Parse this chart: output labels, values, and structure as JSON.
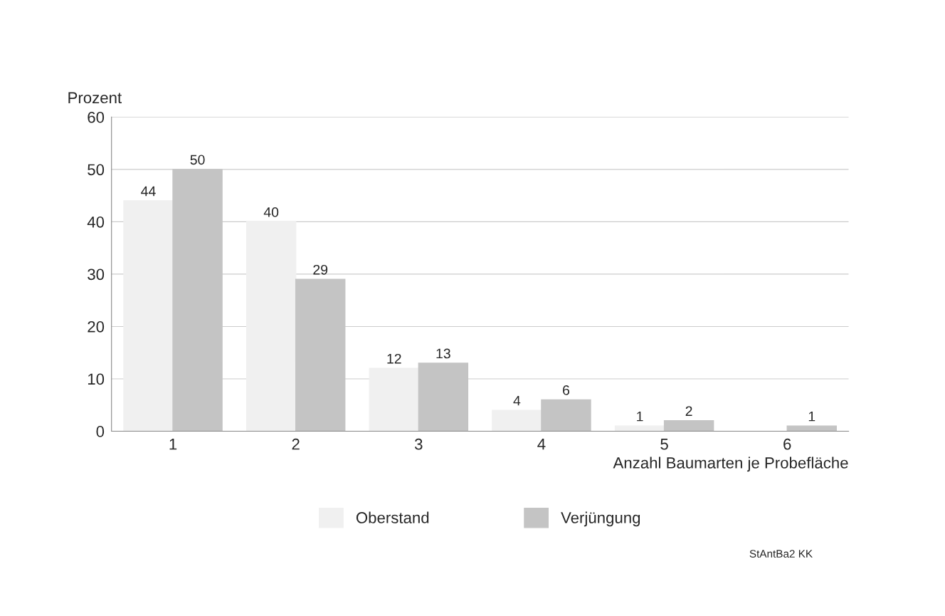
{
  "chart_data": {
    "type": "bar",
    "categories": [
      "1",
      "2",
      "3",
      "4",
      "5",
      "6"
    ],
    "series": [
      {
        "name": "Oberstand",
        "color": "#f0f0f0",
        "values": [
          44,
          40,
          12,
          4,
          1,
          null
        ]
      },
      {
        "name": "Verjüngung",
        "color": "#c4c4c4",
        "values": [
          50,
          29,
          13,
          6,
          2,
          1
        ]
      }
    ],
    "ylabel": "Prozent",
    "xlabel": "Anzahl Baumarten je Probefläche",
    "ylim": [
      0,
      60
    ],
    "yticks": [
      0,
      10,
      20,
      30,
      40,
      50,
      60
    ],
    "grid": "y",
    "legend": "bottom",
    "data_labels": true,
    "annotations": [
      "StAntBa2 KK"
    ]
  }
}
